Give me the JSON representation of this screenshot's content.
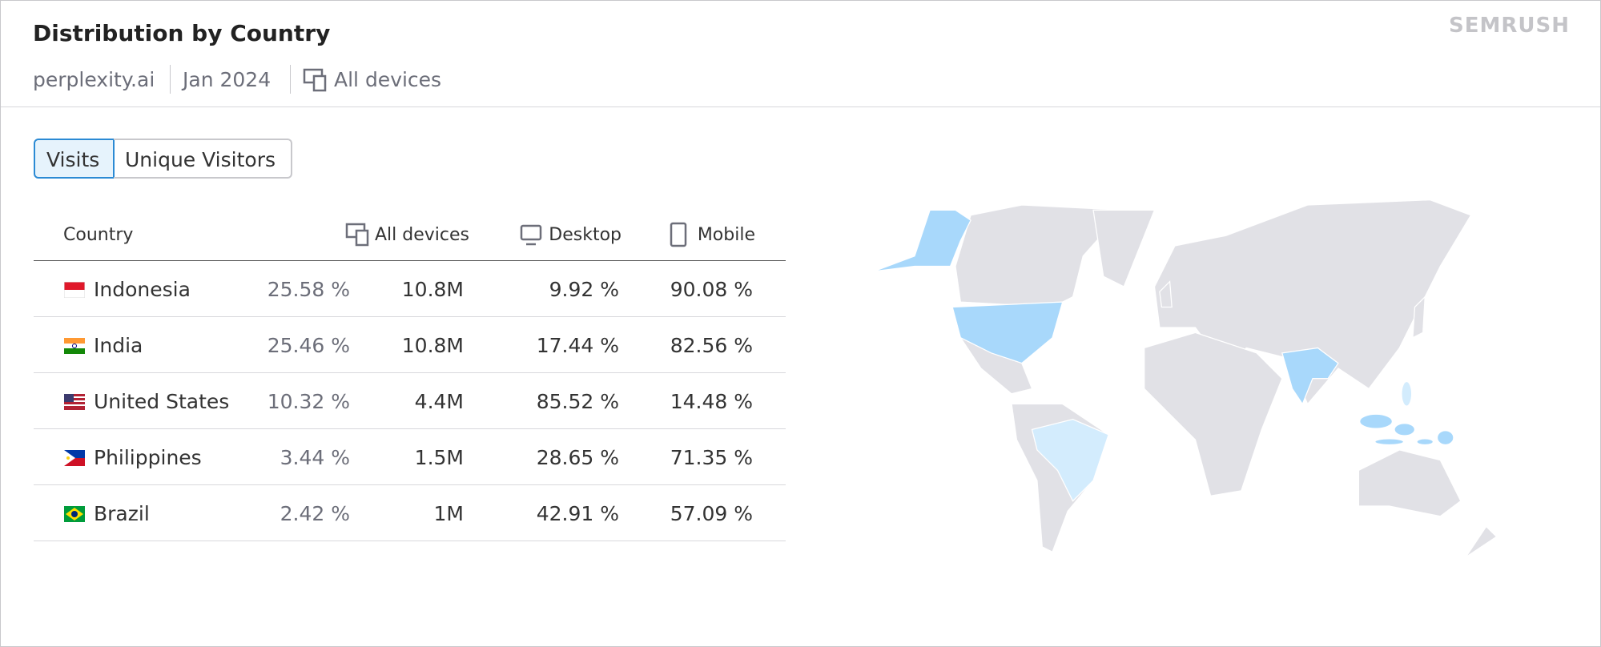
{
  "header": {
    "title": "Distribution by Country",
    "domain": "perplexity.ai",
    "date": "Jan 2024",
    "devices": "All devices",
    "brand": "SEMRUSH"
  },
  "tabs": [
    "Visits",
    "Unique Visitors"
  ],
  "table": {
    "columns": [
      "Country",
      "All devices",
      "Desktop",
      "Mobile"
    ],
    "rows": [
      [
        "Indonesia",
        "25.58 %",
        "10.8M",
        "9.92 %",
        "90.08 %"
      ],
      [
        "India",
        "25.46 %",
        "10.8M",
        "17.44 %",
        "82.56 %"
      ],
      [
        "United States",
        "10.32 %",
        "4.4M",
        "85.52 %",
        "14.48 %"
      ],
      [
        "Philippines",
        "3.44 %",
        "1.5M",
        "28.65 %",
        "71.35 %"
      ],
      [
        "Brazil",
        "2.42 %",
        "1M",
        "42.91 %",
        "57.09 %"
      ]
    ]
  }
}
